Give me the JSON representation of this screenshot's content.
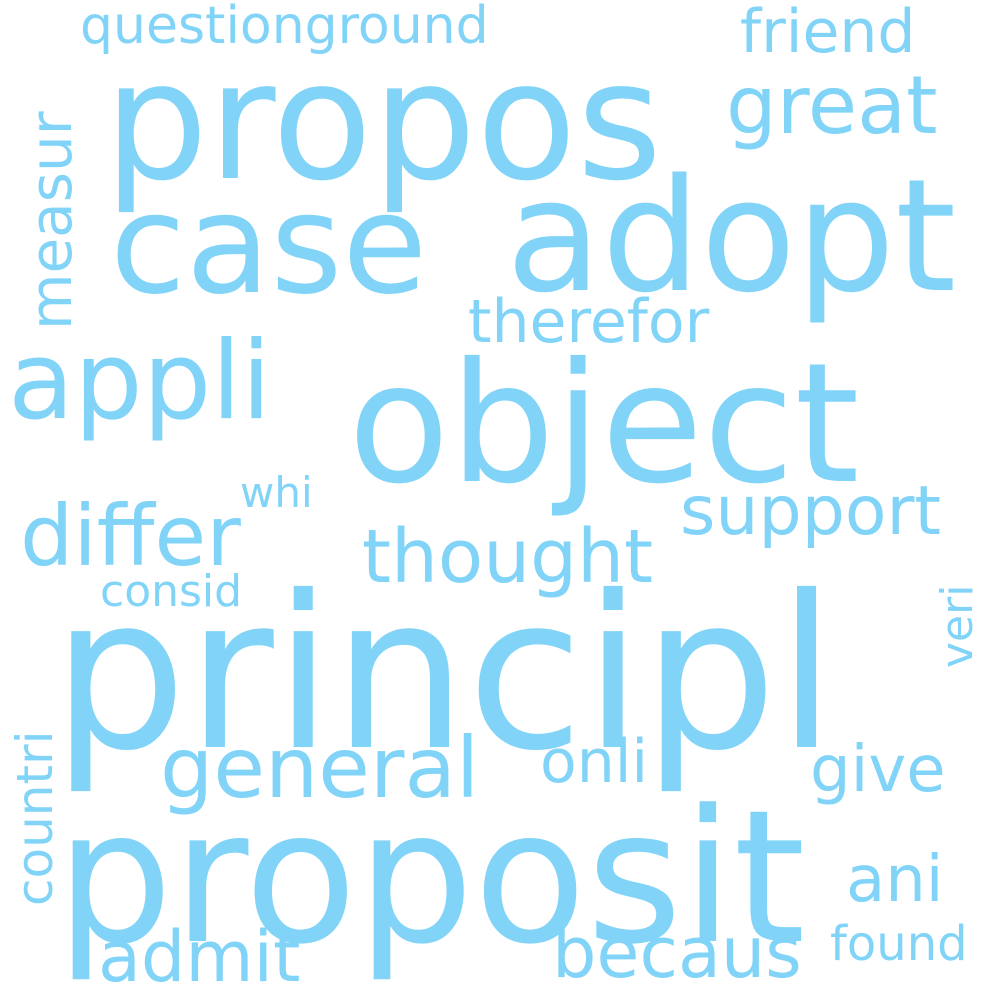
{
  "words": {
    "principl": "principl",
    "proposit": "proposit",
    "propos": "propos",
    "object": "object",
    "adopt": "adopt",
    "case": "case",
    "appli": "appli",
    "differ": "differ",
    "thought": "thought",
    "general": "general",
    "support": "support",
    "great": "great",
    "becaus": "becaus",
    "admit": "admit",
    "therefor": "therefor",
    "questionground": "questionground",
    "friend": "friend",
    "measur": "measur",
    "onli": "onli",
    "give": "give",
    "ani": "ani",
    "countri": "countri",
    "found": "found",
    "consid": "consid",
    "whi": "whi",
    "veri": "veri"
  },
  "colors": {
    "word": "#81d4f7",
    "background": "#ffffff"
  }
}
